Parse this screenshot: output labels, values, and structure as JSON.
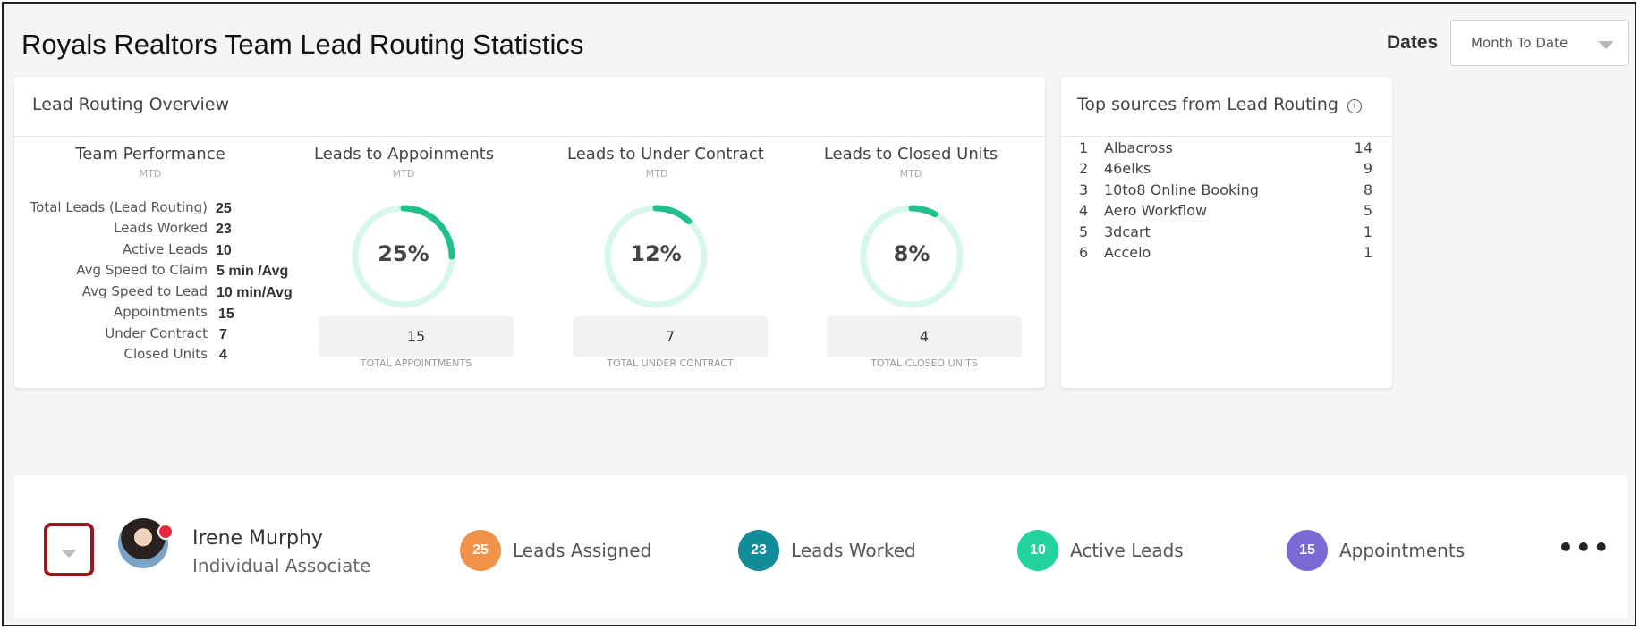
{
  "page": {
    "title": "Royals Realtors Team Lead Routing Statistics",
    "dates_label": "Dates",
    "dates_value": "Month To Date"
  },
  "overview": {
    "title": "Lead Routing Overview",
    "team_performance": {
      "heading": "Team Performance",
      "sub": "MTD",
      "stats": [
        {
          "label": "Total Leads (Lead Routing)",
          "value": "25"
        },
        {
          "label": "Leads Worked",
          "value": "23"
        },
        {
          "label": "Active Leads",
          "value": "10"
        },
        {
          "label": "Avg Speed to Claim",
          "value": "5 min /Avg"
        },
        {
          "label": "Avg Speed to Lead",
          "value": "10 min/Avg"
        },
        {
          "label": "Appointments",
          "value": "15"
        },
        {
          "label": "Under Contract",
          "value": "7"
        },
        {
          "label": "Closed Units",
          "value": "4"
        }
      ]
    },
    "gauges": [
      {
        "heading": "Leads to Appoinments",
        "sub": "MTD",
        "percent_text": "25%",
        "percent": 25,
        "total": "15",
        "caption": "TOTAL APPOINTMENTS"
      },
      {
        "heading": "Leads to Under Contract",
        "sub": "MTD",
        "percent_text": "12%",
        "percent": 12,
        "total": "7",
        "caption": "TOTAL UNDER CONTRACT"
      },
      {
        "heading": "Leads to Closed Units",
        "sub": "MTD",
        "percent_text": "8%",
        "percent": 8,
        "total": "4",
        "caption": "TOTAL CLOSED UNITS"
      }
    ],
    "gauge_colors": {
      "track": "#d7f7ec",
      "fill": "#1fc08a"
    }
  },
  "top_sources": {
    "title": "Top sources from Lead Routing",
    "info_icon": "info-icon",
    "info_glyph": "i",
    "items": [
      {
        "rank": "1",
        "name": "Albacross",
        "count": "14"
      },
      {
        "rank": "2",
        "name": "46elks",
        "count": "9"
      },
      {
        "rank": "3",
        "name": "10to8 Online Booking",
        "count": "8"
      },
      {
        "rank": "4",
        "name": "Aero Workflow",
        "count": "5"
      },
      {
        "rank": "5",
        "name": "3dcart",
        "count": "1"
      },
      {
        "rank": "6",
        "name": "Accelo",
        "count": "1"
      }
    ]
  },
  "agent": {
    "name": "Irene Murphy",
    "role": "Individual Associate",
    "metrics": [
      {
        "value": "25",
        "label": "Leads Assigned",
        "color": "#f0924a"
      },
      {
        "value": "23",
        "label": "Leads Worked",
        "color": "#138c9a"
      },
      {
        "value": "10",
        "label": "Active Leads",
        "color": "#22d39b"
      },
      {
        "value": "15",
        "label": "Appointments",
        "color": "#7b6ad6"
      }
    ],
    "more_glyph": "•••",
    "highlight_color": "#a0161e"
  }
}
